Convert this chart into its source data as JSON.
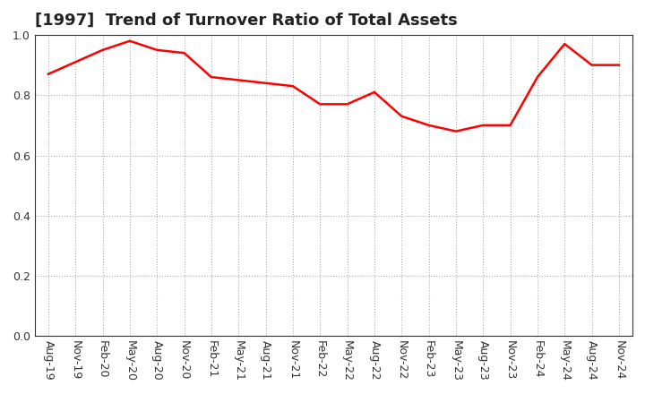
{
  "title": "[1997]  Trend of Turnover Ratio of Total Assets",
  "x_labels": [
    "Aug-19",
    "Nov-19",
    "Feb-20",
    "May-20",
    "Aug-20",
    "Nov-20",
    "Feb-21",
    "May-21",
    "Aug-21",
    "Nov-21",
    "Feb-22",
    "May-22",
    "Aug-22",
    "Nov-22",
    "Feb-23",
    "May-23",
    "Aug-23",
    "Nov-23",
    "Feb-24",
    "May-24",
    "Aug-24",
    "Nov-24"
  ],
  "y_values": [
    0.87,
    0.91,
    0.95,
    0.98,
    0.95,
    0.94,
    0.86,
    0.85,
    0.84,
    0.83,
    0.77,
    0.77,
    0.81,
    0.73,
    0.7,
    0.68,
    0.7,
    0.7,
    0.86,
    0.97,
    0.9,
    0.9
  ],
  "line_color": "#FF0000",
  "line_width": 1.8,
  "ylim": [
    0.0,
    1.0
  ],
  "yticks": [
    0.0,
    0.2,
    0.4,
    0.6,
    0.8,
    1.0
  ],
  "grid_color": "#aaaaaa",
  "bg_color": "#ffffff",
  "title_fontsize": 13,
  "tick_fontsize": 9,
  "title_color": "#222222"
}
